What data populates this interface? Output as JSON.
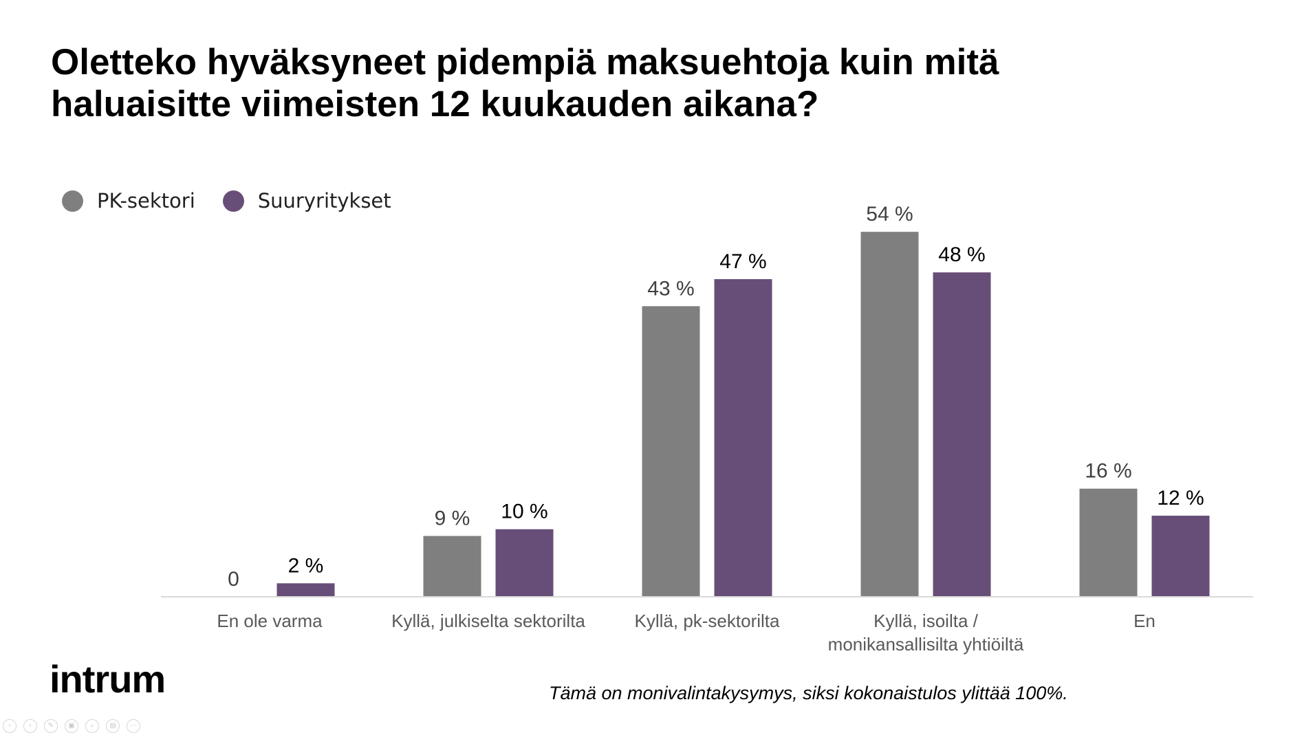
{
  "slide": {
    "title_lines": [
      "Oletteko hyväksyneet pidempiä maksuehtoja kuin mitä",
      "haluaisitte viimeisten 12 kuukauden aikana?"
    ],
    "footnote": "Tämä on monivalintakysymys, siksi kokonaistulos ylittää 100%.",
    "logo_text": "intrum"
  },
  "colors": {
    "pk": "#7f7f7f",
    "suur": "#674e78",
    "axis": "#d9d9d9",
    "category_text": "#595959",
    "label_pk": "#404040",
    "label_suur": "#000000"
  },
  "toolbar": {
    "buttons": [
      {
        "name": "prev-slide-icon",
        "glyph": "‹"
      },
      {
        "name": "next-slide-icon",
        "glyph": "›"
      },
      {
        "name": "pen-icon",
        "glyph": "✎"
      },
      {
        "name": "slides-icon",
        "glyph": "▣"
      },
      {
        "name": "zoom-icon",
        "glyph": "⌕"
      },
      {
        "name": "subtitles-icon",
        "glyph": "▤"
      },
      {
        "name": "more-options-icon",
        "glyph": "⋯"
      }
    ]
  },
  "chart_data": {
    "type": "bar",
    "title": "Oletteko hyväksyneet pidempiä maksuehtoja kuin mitä haluaisitte viimeisten 12 kuukauden aikana?",
    "xlabel": "",
    "ylabel": "",
    "ylim": [
      0,
      60
    ],
    "grid": false,
    "legend_position": "top-left",
    "categories": [
      [
        "En ole varma"
      ],
      [
        "Kyllä, julkiselta sektorilta"
      ],
      [
        "Kyllä, pk-sektorilta"
      ],
      [
        "Kyllä, isoilta /",
        "monikansallisilta yhtiöiltä"
      ],
      [
        "En"
      ]
    ],
    "series": [
      {
        "name": "PK-sektori",
        "values": [
          0,
          9,
          43,
          54,
          16
        ],
        "labels": [
          "0",
          "9 %",
          "43 %",
          "54 %",
          "16 %"
        ]
      },
      {
        "name": "Suuryritykset",
        "values": [
          2,
          10,
          47,
          48,
          12
        ],
        "labels": [
          "2 %",
          "10 %",
          "47 %",
          "48 %",
          "12 %"
        ]
      }
    ]
  }
}
